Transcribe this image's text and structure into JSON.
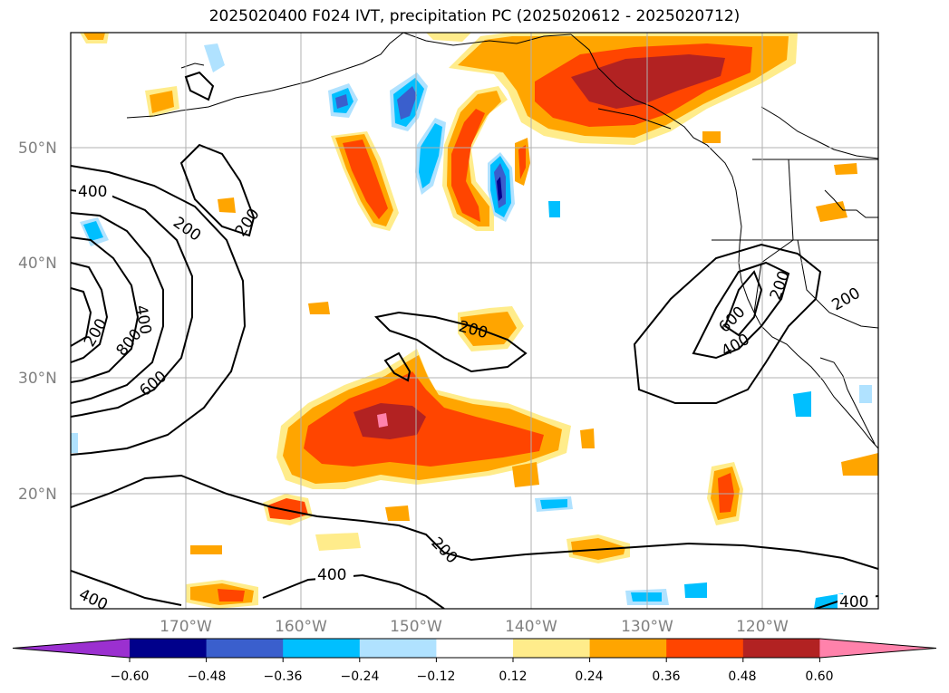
{
  "title": "2025020400 F024 IVT, precipitation PC (2025020612 - 2025020712)",
  "map": {
    "lat_ticks": [
      "50°N",
      "40°N",
      "30°N",
      "20°N"
    ],
    "lon_ticks": [
      "170°W",
      "160°W",
      "150°W",
      "140°W",
      "130°W",
      "120°W"
    ],
    "contour_labels": [
      "400",
      "200",
      "200",
      "400",
      "200",
      "800",
      "600",
      "200",
      "200",
      "600",
      "400",
      "200",
      "400",
      "200",
      "400",
      "400"
    ]
  },
  "colorbar": {
    "colors": [
      "#9b30d0",
      "#00008b",
      "#3a5fcd",
      "#00bfff",
      "#b0e2ff",
      "#ffffff",
      "#ffec8b",
      "#ffa500",
      "#ff4500",
      "#b22222",
      "#ff82ab"
    ],
    "tick_labels": [
      "−0.60",
      "−0.48",
      "−0.36",
      "−0.24",
      "−0.12",
      "0.12",
      "0.24",
      "0.36",
      "0.48",
      "0.60"
    ]
  }
}
